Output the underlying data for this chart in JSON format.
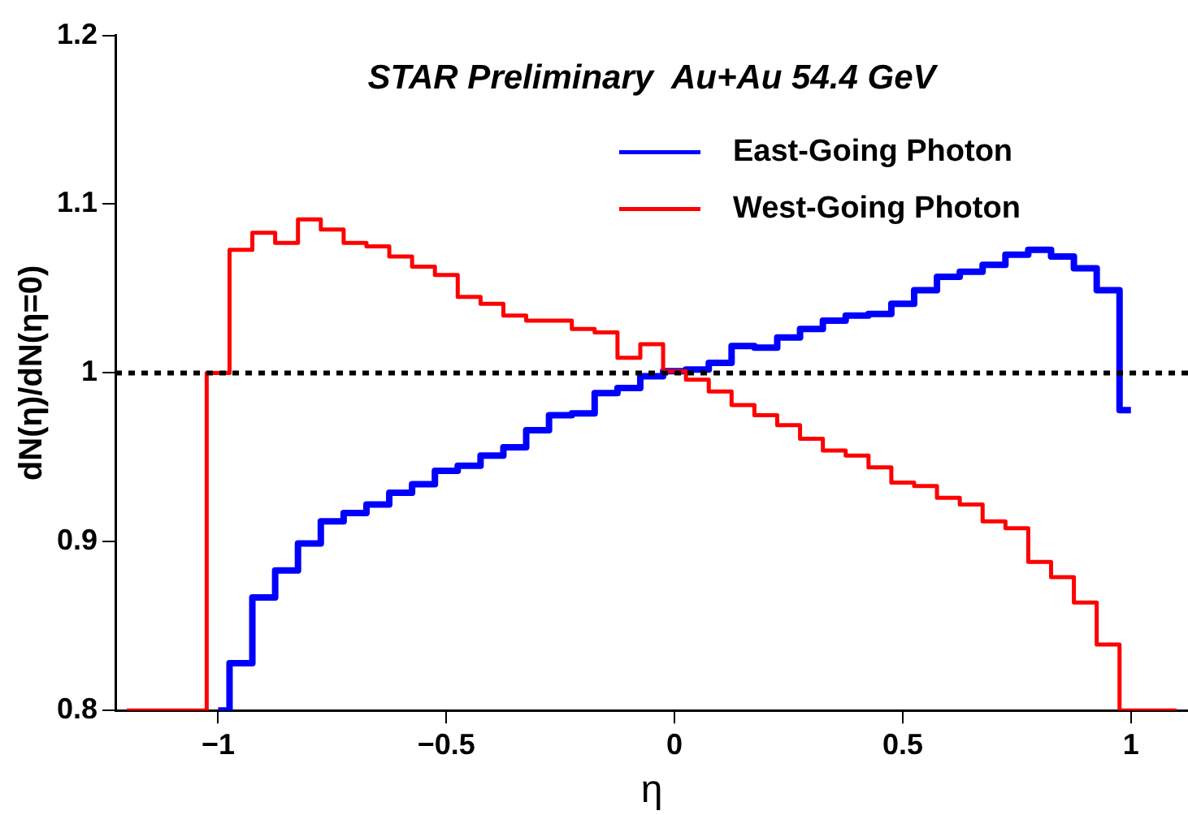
{
  "chart_data": {
    "type": "step",
    "title": "STAR Preliminary  Au+Au 54.4 GeV",
    "xlabel": "η",
    "ylabel": "dN(η)/dN(η=0)",
    "x": [
      -1.2,
      -1.15,
      -1.1,
      -1.05,
      -1,
      -0.95,
      -0.9,
      -0.85,
      -0.8,
      -0.75,
      -0.7,
      -0.65,
      -0.6,
      -0.55,
      -0.5,
      -0.45,
      -0.4,
      -0.35,
      -0.3,
      -0.25,
      -0.2,
      -0.15,
      -0.1,
      -0.05,
      0,
      0.05,
      0.1,
      0.15,
      0.2,
      0.25,
      0.3,
      0.35,
      0.4,
      0.45,
      0.5,
      0.55,
      0.6,
      0.65,
      0.7,
      0.75,
      0.8,
      0.85,
      0.9,
      0.95,
      1,
      1.05,
      1.1
    ],
    "series": [
      {
        "name": "East-Going Photon",
        "color": "#0000ff",
        "values": [
          null,
          null,
          null,
          null,
          0.8,
          0.828,
          0.867,
          0.883,
          0.899,
          0.912,
          0.917,
          0.922,
          0.929,
          0.934,
          0.942,
          0.945,
          0.951,
          0.956,
          0.966,
          0.975,
          0.976,
          0.988,
          0.991,
          0.998,
          1.001,
          1.002,
          1.006,
          1.016,
          1.015,
          1.021,
          1.026,
          1.031,
          1.034,
          1.035,
          1.041,
          1.049,
          1.057,
          1.06,
          1.064,
          1.07,
          1.073,
          1.069,
          1.062,
          1.049,
          0.978,
          null,
          null
        ]
      },
      {
        "name": "West-Going Photon",
        "color": "#ff0000",
        "values": [
          0.8,
          0.8,
          0.8,
          0.8,
          1.0,
          1.073,
          1.083,
          1.077,
          1.091,
          1.085,
          1.077,
          1.075,
          1.069,
          1.063,
          1.058,
          1.045,
          1.041,
          1.034,
          1.031,
          1.031,
          1.026,
          1.024,
          1.009,
          1.017,
          1.001,
          0.996,
          0.989,
          0.981,
          0.975,
          0.969,
          0.961,
          0.954,
          0.951,
          0.944,
          0.935,
          0.933,
          0.926,
          0.922,
          0.912,
          0.908,
          0.888,
          0.879,
          0.864,
          0.839,
          0.8,
          0.8,
          0.8
        ]
      }
    ],
    "xlim": [
      -1.225,
      1.125
    ],
    "xticks": [
      {
        "value": -1,
        "label": "−1"
      },
      {
        "value": -0.5,
        "label": "−0.5"
      },
      0,
      0.5,
      1
    ],
    "ylim": [
      0.8,
      1.2
    ],
    "yticks": [
      {
        "value": 0.8,
        "label": "0.8"
      },
      {
        "value": 0.9,
        "label": "0.9"
      },
      {
        "value": 1,
        "label": "1"
      },
      {
        "value": 1.1,
        "label": "1.1"
      },
      {
        "value": 1.2,
        "label": "1.2"
      }
    ],
    "ref_lines": [
      {
        "axis": "y",
        "value": 1,
        "color": "#000000",
        "line_style": "dotted"
      }
    ],
    "legend": "top right",
    "grid": false
  }
}
